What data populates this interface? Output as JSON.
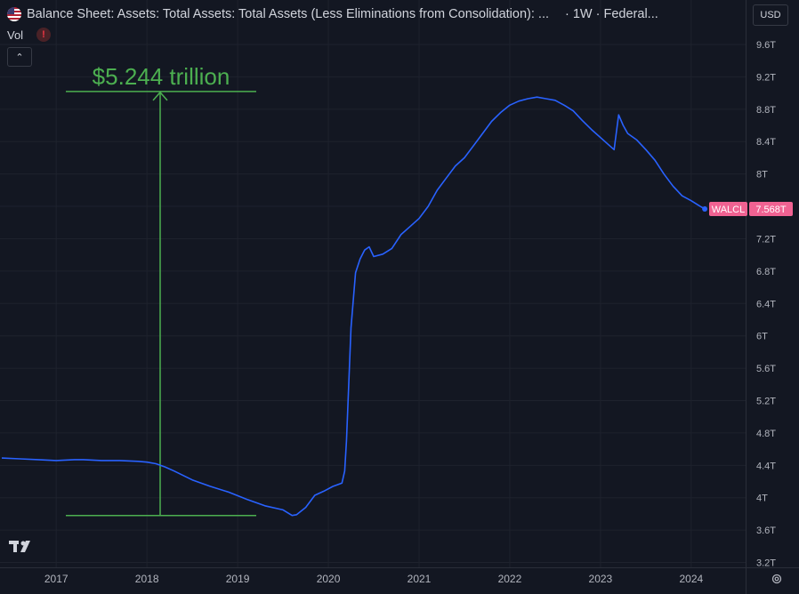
{
  "header": {
    "title": "Balance Sheet: Assets: Total Assets: Total Assets (Less Eliminations from Consolidation): ...",
    "interval_source": "· 1W · Federal...",
    "vol_label": "Vol",
    "warning_glyph": "!",
    "collapse_glyph": "⌃",
    "currency": "USD",
    "flag_icon": "us-flag-icon"
  },
  "colors": {
    "background": "#131722",
    "line": "#2962ff",
    "measure": "#4caf50",
    "badge": "#f06292",
    "grid": "#1e222d"
  },
  "annotation": {
    "label": "$5.244 trillion",
    "from": 3.78,
    "to": 9.02
  },
  "badge": {
    "symbol": "WALCL",
    "value": "7.568T"
  },
  "chart_data": {
    "type": "line",
    "title": "Balance Sheet: Assets: Total Assets: Total Assets (Less Eliminations from Consolidation)",
    "series": [
      {
        "name": "WALCL",
        "x": [
          2016.4,
          2016.6,
          2016.8,
          2017.0,
          2017.2,
          2017.3,
          2017.5,
          2017.7,
          2017.9,
          2018.0,
          2018.1,
          2018.2,
          2018.3,
          2018.5,
          2018.7,
          2018.9,
          2019.1,
          2019.3,
          2019.5,
          2019.6,
          2019.65,
          2019.75,
          2019.85,
          2019.95,
          2020.05,
          2020.15,
          2020.18,
          2020.2,
          2020.25,
          2020.3,
          2020.35,
          2020.4,
          2020.45,
          2020.5,
          2020.6,
          2020.7,
          2020.8,
          2020.9,
          2021.0,
          2021.1,
          2021.2,
          2021.3,
          2021.4,
          2021.5,
          2021.6,
          2021.7,
          2021.8,
          2021.9,
          2022.0,
          2022.1,
          2022.2,
          2022.3,
          2022.4,
          2022.5,
          2022.6,
          2022.7,
          2022.8,
          2022.9,
          2023.0,
          2023.1,
          2023.15,
          2023.2,
          2023.25,
          2023.3,
          2023.4,
          2023.5,
          2023.6,
          2023.7,
          2023.8,
          2023.9,
          2024.0,
          2024.1,
          2024.15
        ],
        "values": [
          4.49,
          4.48,
          4.47,
          4.46,
          4.47,
          4.47,
          4.46,
          4.46,
          4.45,
          4.44,
          4.42,
          4.38,
          4.33,
          4.22,
          4.14,
          4.07,
          3.98,
          3.9,
          3.85,
          3.78,
          3.79,
          3.88,
          4.03,
          4.08,
          4.14,
          4.18,
          4.33,
          4.7,
          6.1,
          6.78,
          6.95,
          7.06,
          7.1,
          6.98,
          7.01,
          7.08,
          7.25,
          7.35,
          7.45,
          7.6,
          7.8,
          7.95,
          8.1,
          8.2,
          8.35,
          8.5,
          8.65,
          8.76,
          8.85,
          8.9,
          8.93,
          8.95,
          8.93,
          8.91,
          8.85,
          8.78,
          8.66,
          8.55,
          8.45,
          8.35,
          8.3,
          8.73,
          8.6,
          8.5,
          8.42,
          8.3,
          8.17,
          8.0,
          7.85,
          7.73,
          7.67,
          7.6,
          7.568
        ]
      }
    ],
    "x_ticks": [
      "2017",
      "2018",
      "2019",
      "2020",
      "2021",
      "2022",
      "2023",
      "2024"
    ],
    "y_ticks": [
      "9.6T",
      "9.2T",
      "8.8T",
      "8.4T",
      "8T",
      "7.6T",
      "7.2T",
      "6.8T",
      "6.4T",
      "6T",
      "5.6T",
      "5.2T",
      "4.8T",
      "4.4T",
      "4T",
      "3.6T",
      "3.2T"
    ],
    "xlim": [
      2016.38,
      2024.6
    ],
    "ylim": [
      3.14,
      9.82
    ],
    "ylabel": "",
    "xlabel": "",
    "grid": true
  }
}
